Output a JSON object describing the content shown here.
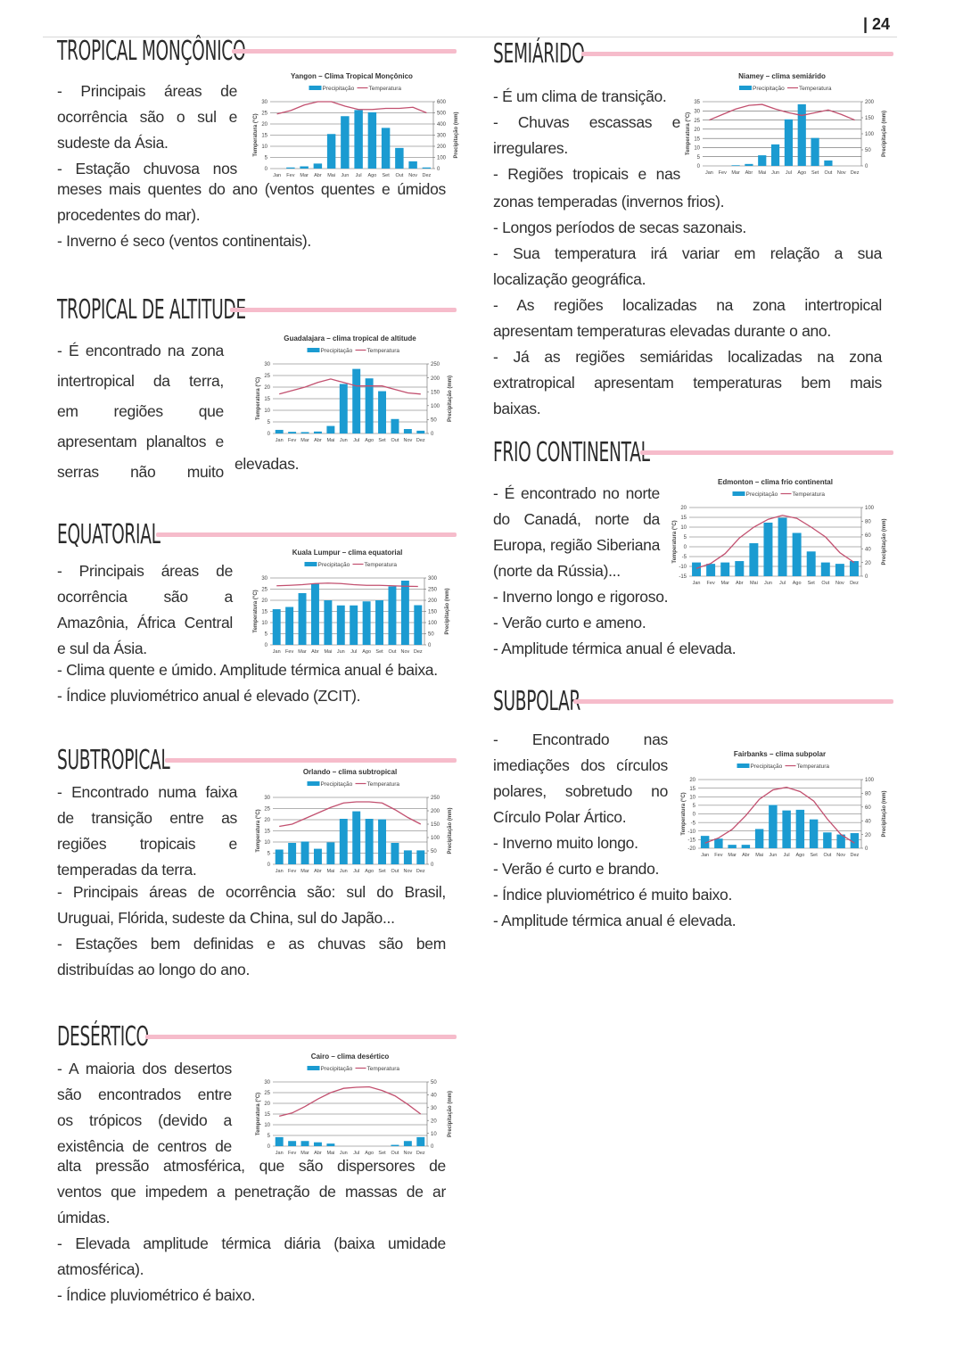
{
  "page_number": "| 24",
  "sections": {
    "monsoon": {
      "title": "TROPICAL MONÇÔNICO",
      "lines": [
        "- Principais áreas de",
        "ocorrência são o sul e",
        "sudeste da Ásia.",
        "- Estação chuvosa nos",
        "meses mais quentes do ano (ventos quentes e úmidos",
        "procedentes do mar).",
        "- Inverno é seco (ventos continentais)."
      ]
    },
    "altitude": {
      "title": "TROPICAL DE ALTITUDE",
      "lines": [
        "- É encontrado na zona",
        "intertropical da terra,",
        "em regiões que",
        "apresentam planaltos e",
        "serras não muito"
      ],
      "continuation": "elevadas."
    },
    "equatorial": {
      "title": "EQUATORIAL",
      "lines": [
        "- Principais áreas de",
        "ocorrência são a",
        "Amazônia, África Central",
        "e sul da Ásia.",
        "- Clima quente e úmido. Amplitude térmica anual é baixa.",
        "- Índice pluviométrico anual é elevado (ZCIT)."
      ]
    },
    "subtropical": {
      "title": "SUBTROPICAL",
      "lines": [
        "- Encontrado numa faixa",
        "de transição entre as",
        "regiões tropicais e",
        "temperadas da terra.",
        "- Principais áreas de ocorrência são: sul do Brasil,",
        "Uruguai, Flórida, sudeste da China, sul do Japão...",
        "- Estações bem definidas e as chuvas são bem",
        "distribuídas ao longo do ano."
      ]
    },
    "desertic": {
      "title": "DESÉRTICO",
      "lines": [
        "- A maioria dos desertos",
        "são encontrados entre",
        "os trópicos (devido a",
        "existência de centros de",
        "alta pressão atmosférica, que são dispersores de",
        "ventos que impedem a penetração de massas de ar",
        "úmidas.",
        "- Elevada amplitude térmica diária (baixa umidade",
        "atmosférica).",
        "- Índice pluviométrico é baixo."
      ]
    },
    "semiarid": {
      "title": "SEMIÁRIDO",
      "lines": [
        "- É um clima de transição.",
        "- Chuvas escassas e",
        "irregulares.",
        "- Regiões tropicais e nas",
        "zonas temperadas (invernos frios).",
        "- Longos períodos de secas sazonais.",
        "- Sua temperatura irá variar em relação a sua",
        "localização geográfica.",
        "- As regiões localizadas na zona intertropical",
        "apresentam temperaturas elevadas durante o ano.",
        "- Já as regiões semiáridas localizadas na zona",
        "extratropical apresentam temperaturas bem mais",
        "baixas."
      ]
    },
    "cold": {
      "title": "FRIO CONTINENTAL",
      "lines": [
        "- É encontrado no norte",
        "do Canadá, norte da",
        "Europa, região Siberiana",
        "(norte da Rússia)...",
        "- Inverno longo e rigoroso.",
        "- Verão curto e ameno.",
        "- Amplitude térmica anual é elevada."
      ]
    },
    "subpolar": {
      "title": "SUBPOLAR",
      "lines": [
        "- Encontrado nas",
        "imediações dos círculos",
        "polares, sobretudo no",
        "Círculo Polar Ártico.",
        "- Inverno muito longo.",
        "- Verão é curto e brando.",
        "- Índice pluviométrico é muito baixo.",
        "- Amplitude térmica anual é elevada."
      ]
    }
  },
  "colors": {
    "accent_bar": "#f6bccb",
    "precip_bar": "#1b9bd1",
    "temp_line": "#c2506f"
  },
  "chart_data": [
    {
      "id": "monsoon",
      "type": "bar+line",
      "title": "Yangon – Clima Tropical Monçônico",
      "legend": [
        "Precipitação",
        "Temperatura"
      ],
      "ylabel": "Temperatura (°C)",
      "y2label": "Precipitação (mm)",
      "categories": [
        "Jan",
        "Fev",
        "Mar",
        "Abr",
        "Mai",
        "Jun",
        "Jul",
        "Ago",
        "Set",
        "Out",
        "Nov",
        "Dez"
      ],
      "ylim": [
        0,
        30
      ],
      "ystep": 5,
      "y2lim": [
        0,
        600
      ],
      "y2step": 100,
      "precip": [
        0,
        10,
        20,
        45,
        310,
        470,
        525,
        505,
        365,
        185,
        65,
        10
      ],
      "temp": [
        24.5,
        26,
        28.5,
        30,
        30,
        28,
        26.5,
        26.5,
        27,
        27,
        27.5,
        25
      ]
    },
    {
      "id": "semiarid",
      "type": "bar+line",
      "title": "Niamey – clima semiárido",
      "legend": [
        "Precipitação",
        "Temperatura"
      ],
      "ylabel": "Temperatura (°C)",
      "y2label": "Precipitação (mm)",
      "categories": [
        "Jan",
        "Fev",
        "Mar",
        "Abr",
        "Mai",
        "Jun",
        "Jul",
        "Ago",
        "Set",
        "Out",
        "Nov",
        "Dez"
      ],
      "ylim": [
        0,
        35
      ],
      "ystep": 5,
      "y2lim": [
        0,
        200
      ],
      "y2step": 50,
      "precip": [
        0,
        0,
        2,
        6,
        33,
        67,
        145,
        192,
        87,
        17,
        0,
        0
      ],
      "temp": [
        25,
        28,
        31,
        33,
        33.5,
        31,
        29,
        27.5,
        29,
        30.5,
        28,
        25
      ]
    },
    {
      "id": "altitude",
      "type": "bar+line",
      "title": "Guadalajara – clima tropical de altitude",
      "legend": [
        "Precipitação",
        "Temperatura"
      ],
      "ylabel": "Temperatura (°C)",
      "y2label": "Precipitação (mm)",
      "categories": [
        "Jan",
        "Fev",
        "Mar",
        "Abr",
        "Mai",
        "Jun",
        "Jul",
        "Ago",
        "Set",
        "Out",
        "Nov",
        "Dez"
      ],
      "ylim": [
        0,
        30
      ],
      "ystep": 5,
      "y2lim": [
        0,
        250
      ],
      "y2step": 50,
      "precip": [
        13,
        6,
        5,
        7,
        27,
        178,
        232,
        198,
        152,
        52,
        16,
        10
      ],
      "temp": [
        17,
        18.5,
        20,
        22,
        23.5,
        22,
        20.5,
        20.5,
        20.5,
        19,
        17.5,
        17
      ]
    },
    {
      "id": "equatorial",
      "type": "bar+line",
      "title": "Kuala Lumpur – clima equatorial",
      "legend": [
        "Precipitação",
        "Temperatura"
      ],
      "ylabel": "Temperatura (°C)",
      "y2label": "Precipitação (mm)",
      "categories": [
        "Jan",
        "Fev",
        "Mar",
        "Abr",
        "Mai",
        "Jun",
        "Jul",
        "Ago",
        "Set",
        "Out",
        "Nov",
        "Dez"
      ],
      "ylim": [
        0,
        30
      ],
      "ystep": 5,
      "y2lim": [
        0,
        300
      ],
      "y2step": 50,
      "precip": [
        160,
        170,
        232,
        275,
        200,
        177,
        177,
        195,
        200,
        262,
        288,
        178
      ],
      "temp": [
        26.5,
        26.7,
        27,
        27.5,
        27.7,
        27.5,
        27,
        26.7,
        26.7,
        26.5,
        26.3,
        26.2
      ]
    },
    {
      "id": "cold",
      "type": "bar+line",
      "title": "Edmonton – clima frio continental",
      "legend": [
        "Precipitação",
        "Temperatura"
      ],
      "ylabel": "Temperatura (°C)",
      "y2label": "Precipitação (mm)",
      "categories": [
        "Jan",
        "Fev",
        "Mar",
        "Abr",
        "Mai",
        "Jun",
        "Jul",
        "Ago",
        "Set",
        "Out",
        "Nov",
        "Dez"
      ],
      "ylim": [
        -15,
        20
      ],
      "ystep": 5,
      "y2lim": [
        0,
        100
      ],
      "y2step": 20,
      "precip": [
        20,
        18,
        20,
        22,
        48,
        78,
        85,
        63,
        36,
        20,
        18,
        22
      ],
      "temp": [
        -11,
        -8.5,
        -3.5,
        4.5,
        10,
        14,
        16,
        14.5,
        10,
        5,
        -3,
        -8
      ]
    },
    {
      "id": "subtropical",
      "type": "bar+line",
      "title": "Orlando – clima subtropical",
      "legend": [
        "Precipitação",
        "Temperatura"
      ],
      "ylabel": "Temperatura (°C)",
      "y2label": "Precipitação (mm)",
      "categories": [
        "Jan",
        "Fev",
        "Mar",
        "Abr",
        "Mai",
        "Jun",
        "Jul",
        "Ago",
        "Set",
        "Out",
        "Nov",
        "Dez"
      ],
      "ylim": [
        0,
        30
      ],
      "ystep": 5,
      "y2lim": [
        0,
        250
      ],
      "y2step": 50,
      "precip": [
        55,
        80,
        85,
        58,
        82,
        170,
        198,
        170,
        168,
        80,
        52,
        52
      ],
      "temp": [
        17,
        18,
        20.5,
        23,
        25.5,
        27.5,
        28,
        28,
        27.5,
        24.5,
        21,
        18
      ]
    },
    {
      "id": "subpolar",
      "type": "bar+line",
      "title": "Fairbanks – clima subpolar",
      "legend": [
        "Precipitação",
        "Temperatura"
      ],
      "ylabel": "Temperatura (°C)",
      "y2label": "Precipitação (mm)",
      "categories": [
        "Jan",
        "Fev",
        "Mar",
        "Abr",
        "Mai",
        "Jun",
        "Jul",
        "Ago",
        "Set",
        "Out",
        "Nov",
        "Dez"
      ],
      "ylim": [
        -20,
        20
      ],
      "ystep": 5,
      "y2lim": [
        0,
        100
      ],
      "y2step": 20,
      "precip": [
        18,
        14,
        5,
        5,
        28,
        63,
        55,
        56,
        42,
        23,
        20,
        22
      ],
      "temp": [
        -17,
        -14,
        -9,
        -1,
        8.5,
        14,
        15.5,
        13,
        7.5,
        -3,
        -12,
        -17
      ]
    },
    {
      "id": "desertic",
      "type": "bar+line",
      "title": "Cairo – clima desértico",
      "legend": [
        "Precipitação",
        "Temperatura"
      ],
      "ylabel": "Temperatura (°C)",
      "y2label": "Precipitação (mm)",
      "categories": [
        "Jan",
        "Fev",
        "Mar",
        "Abr",
        "Mai",
        "Jun",
        "Jul",
        "Ago",
        "Set",
        "Out",
        "Nov",
        "Dez"
      ],
      "ylim": [
        0,
        30
      ],
      "ystep": 5,
      "y2lim": [
        0,
        50
      ],
      "y2step": 10,
      "precip": [
        7,
        4,
        4,
        3,
        2,
        0,
        0,
        0,
        0,
        1,
        4,
        7
      ],
      "temp": [
        14,
        15.5,
        18.5,
        22,
        25,
        27,
        27.5,
        27.7,
        26,
        23.5,
        19.5,
        15
      ]
    }
  ]
}
